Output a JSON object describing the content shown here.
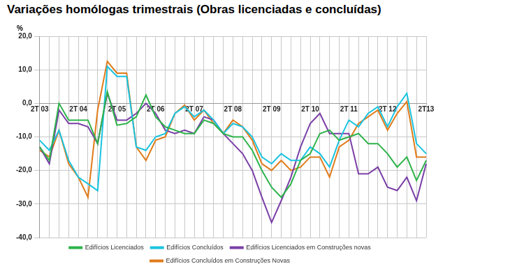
{
  "chart_data": {
    "type": "line",
    "title": "Variações homólogas trimestrais (Obras licenciadas e concluídas)",
    "ylabel": "%",
    "categories": [
      "2T 03",
      null,
      null,
      null,
      "2T 04",
      null,
      null,
      null,
      "2T 05",
      null,
      null,
      null,
      "2T 06",
      null,
      null,
      null,
      "2T 07",
      null,
      null,
      null,
      "2T 08",
      null,
      null,
      null,
      "2T 09",
      null,
      null,
      null,
      "2T 10",
      null,
      null,
      null,
      "2T 11",
      null,
      null,
      null,
      "2T 12",
      null,
      null,
      null,
      "2T13"
    ],
    "series": [
      {
        "name": "Edifícios Licenciados",
        "color": "#2db34a",
        "values": [
          -13,
          -17,
          0,
          -5,
          -5,
          -5,
          -12,
          3.5,
          -6.5,
          -6,
          -4,
          2.5,
          -4,
          -7,
          -8,
          -9,
          -9,
          -5,
          -6,
          -9,
          -10,
          -10,
          -14,
          -20,
          -25,
          -28,
          -24,
          -17,
          -15,
          -9,
          -8,
          -11,
          -10,
          -9,
          -12,
          -12,
          -15,
          -19,
          -16,
          -23,
          -17
        ]
      },
      {
        "name": "Edifícios Concluídos",
        "color": "#19c3e0",
        "values": [
          -11,
          -14,
          -8,
          -17,
          -22,
          -24,
          -26,
          11,
          8,
          8,
          -13,
          -14,
          -10,
          -9,
          -3,
          -1,
          -4,
          -2,
          -5,
          -9,
          -6,
          -7,
          -10,
          -16,
          -18,
          -15,
          -17,
          -17,
          -13,
          -15,
          -19,
          -11,
          -5,
          -7,
          -3,
          -1,
          -7,
          -1,
          3,
          -12,
          -15
        ]
      },
      {
        "name": "Edifícios Licenciados em Construções novas",
        "color": "#7a3fa6",
        "values": [
          -13,
          -18,
          -2,
          -6,
          -6,
          -7,
          -12,
          3,
          -5,
          -5,
          -3,
          0,
          -3,
          -8,
          -9,
          -8,
          -9,
          -4,
          -5,
          -9,
          -12,
          -15,
          -20,
          -28,
          -35.5,
          -29,
          -22,
          -13,
          -6,
          -3,
          -9,
          -9,
          -9,
          -21,
          -21,
          -19,
          -25,
          -26,
          -22,
          -29,
          -18
        ]
      },
      {
        "name": "Edifícios Concluídos em Construções Novas",
        "color": "#e07b1a",
        "values": [
          -14,
          -16,
          -8,
          -18,
          -22,
          -28,
          -2,
          12.5,
          9,
          9,
          -13,
          -17,
          -11,
          -10,
          -3,
          -0.5,
          -5,
          -2,
          -6,
          -9,
          -5,
          -7,
          -11,
          -18,
          -20,
          -17,
          -20,
          -19,
          -16,
          -16,
          -22,
          -13,
          -11,
          -6,
          -4,
          -2,
          -8,
          -3,
          0.5,
          -16,
          -16
        ]
      }
    ],
    "ylim": [
      -40,
      20
    ],
    "yticks": [
      {
        "value": -40,
        "label": "-40,0"
      },
      {
        "value": -30,
        "label": "-30,0"
      },
      {
        "value": -20,
        "label": "-20,0"
      },
      {
        "value": -10,
        "label": "-10,0"
      },
      {
        "value": 0,
        "label": "0,0"
      },
      {
        "value": 10,
        "label": "10,0"
      },
      {
        "value": 20,
        "label": "20,0"
      }
    ],
    "grid": true,
    "legend": "bottom"
  }
}
